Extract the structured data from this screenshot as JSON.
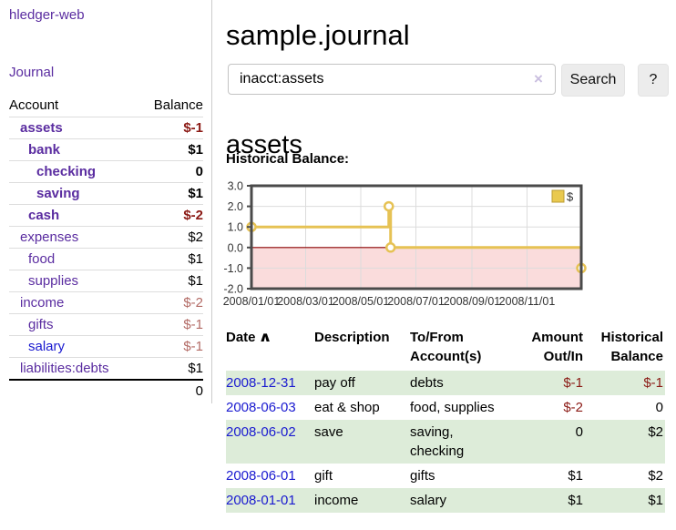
{
  "app": {
    "brand": "hledger-web"
  },
  "colors": {
    "link_purple": "#5a2ca0",
    "link_blue": "#1a1ad0",
    "negative_strong": "#8b1a15",
    "negative_soft": "#b36b66",
    "row_stripe_green": "#ddecd9",
    "chart_line_gold": "#e6c254",
    "chart_negative_region_pink": "#fadcdc",
    "chart_zero_line_red": "#8b0000"
  },
  "icons": {
    "clear_icon": "×",
    "sort_asc_icon": "∧"
  },
  "sidebar": {
    "nav": {
      "journal_label": "Journal"
    },
    "accounts": {
      "headers": {
        "account": "Account",
        "balance": "Balance"
      },
      "rows": [
        {
          "name": "assets",
          "balance": "$-1",
          "indent": 1,
          "bold": true,
          "link_color": "purple",
          "balance_class": "neg"
        },
        {
          "name": "bank",
          "balance": "$1",
          "indent": 2,
          "bold": true,
          "link_color": "purple",
          "balance_class": ""
        },
        {
          "name": "checking",
          "balance": "0",
          "indent": 3,
          "bold": true,
          "link_color": "purple",
          "balance_class": ""
        },
        {
          "name": "saving",
          "balance": "$1",
          "indent": 3,
          "bold": true,
          "link_color": "purple",
          "balance_class": ""
        },
        {
          "name": "cash",
          "balance": "$-2",
          "indent": 2,
          "bold": true,
          "link_color": "purple",
          "balance_class": "neg"
        },
        {
          "name": "expenses",
          "balance": "$2",
          "indent": 1,
          "bold": false,
          "link_color": "purple",
          "balance_class": ""
        },
        {
          "name": "food",
          "balance": "$1",
          "indent": 2,
          "bold": false,
          "link_color": "purple",
          "balance_class": ""
        },
        {
          "name": "supplies",
          "balance": "$1",
          "indent": 2,
          "bold": false,
          "link_color": "purple",
          "balance_class": ""
        },
        {
          "name": "income",
          "balance": "$-2",
          "indent": 1,
          "bold": false,
          "link_color": "purple",
          "balance_class": "neg-soft"
        },
        {
          "name": "gifts",
          "balance": "$-1",
          "indent": 2,
          "bold": false,
          "link_color": "purple",
          "balance_class": "neg-soft"
        },
        {
          "name": "salary",
          "balance": "$-1",
          "indent": 2,
          "bold": false,
          "link_color": "blue",
          "balance_class": "neg-soft"
        },
        {
          "name": "liabilities:debts",
          "balance": "$1",
          "indent": 1,
          "bold": false,
          "link_color": "purple",
          "balance_class": ""
        }
      ],
      "total": "0"
    }
  },
  "main": {
    "title": "sample.journal",
    "search": {
      "value": "inacct:assets",
      "placeholder": "",
      "search_button_label": "Search",
      "help_button_label": "?"
    },
    "account_heading": "assets",
    "chart_label": "Historical Balance:",
    "register": {
      "headers": [
        {
          "label": "Date",
          "align": "left",
          "sorted": "asc"
        },
        {
          "label": "Description",
          "align": "left"
        },
        {
          "label": "To/From Account(s)",
          "align": "left"
        },
        {
          "label": "Amount Out/In",
          "align": "right"
        },
        {
          "label": "Historical Balance",
          "align": "right"
        }
      ],
      "rows": [
        {
          "date": "2008-12-31",
          "description": "pay off",
          "accounts": "debts",
          "amount": "$-1",
          "balance": "$-1"
        },
        {
          "date": "2008-06-03",
          "description": "eat & shop",
          "accounts": "food, supplies",
          "amount": "$-2",
          "balance": "0"
        },
        {
          "date": "2008-06-02",
          "description": "save",
          "accounts": "saving, checking",
          "amount": "0",
          "balance": "$2"
        },
        {
          "date": "2008-06-01",
          "description": "gift",
          "accounts": "gifts",
          "amount": "$1",
          "balance": "$2"
        },
        {
          "date": "2008-01-01",
          "description": "income",
          "accounts": "salary",
          "amount": "$1",
          "balance": "$1"
        }
      ]
    }
  },
  "chart_data": {
    "type": "line",
    "title": "Historical Balance:",
    "step": true,
    "series": [
      {
        "name": "$",
        "points": [
          {
            "x": "2008-01-01",
            "y": 1
          },
          {
            "x": "2008-06-01",
            "y": 2
          },
          {
            "x": "2008-06-03",
            "y": 0
          },
          {
            "x": "2008-12-31",
            "y": -1
          }
        ]
      }
    ],
    "x_range": [
      "2008-01-01",
      "2008-12-31"
    ],
    "ylim": [
      -2.0,
      3.0
    ],
    "yticks": [
      3.0,
      2.0,
      1.0,
      0.0,
      -1.0,
      -2.0
    ],
    "xtick_labels": [
      "2008/01/01",
      "2008/03/01",
      "2008/05/01",
      "2008/07/01",
      "2008/09/01",
      "2008/11/01"
    ],
    "legend": {
      "entries": [
        "$"
      ],
      "position": "top-right"
    },
    "grid": true,
    "negative_region_shaded": true
  }
}
